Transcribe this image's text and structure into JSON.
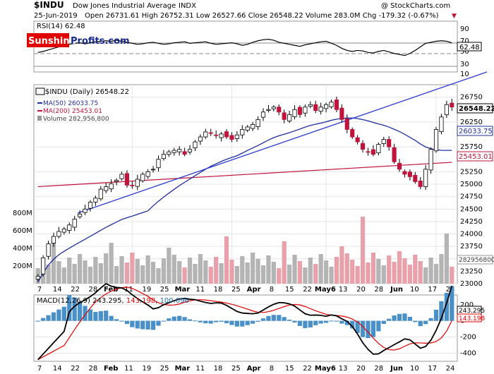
{
  "header": {
    "symbol": "$INDU",
    "name": "Dow Jones Industrial Average",
    "exchange": "INDX",
    "watermark": "@ StockCharts.com",
    "date": "25-Jun-2019",
    "quote": "Open 26731.61  High 26752.31  Low 26527.66  Close 26548.22  Volume 283.0M  Chg -179.32 (-0.67%)",
    "chg_arrow": "▼"
  },
  "logo": {
    "text_red": "Sunshine",
    "text_blue": "Profits.com"
  },
  "rsi": {
    "label": "RSI(14) 62.48",
    "value_badge": "62.48",
    "levels": [
      "90",
      "70",
      "50",
      "30",
      "10"
    ],
    "values": [
      44,
      46,
      49,
      52,
      55,
      57,
      60,
      62,
      63,
      61,
      63,
      65,
      66,
      67,
      66,
      68,
      66,
      64,
      62,
      60,
      61,
      63,
      64,
      62,
      60,
      61,
      63,
      64,
      65,
      62,
      63,
      64,
      65,
      62,
      60,
      61,
      62,
      63,
      61,
      58,
      60,
      64,
      67,
      69,
      70,
      68,
      64,
      62,
      60,
      58,
      56,
      59,
      61,
      63,
      65,
      66,
      62,
      58,
      52,
      48,
      46,
      48,
      47,
      44,
      43,
      46,
      48,
      45,
      42,
      40,
      38,
      42,
      48,
      55,
      62,
      64,
      66,
      67,
      66,
      63
    ]
  },
  "price_panel": {
    "legend_title": "$INDU (Daily) 26548.22",
    "ma50_label": "MA(50) 26033.75",
    "ma200_label": "MA(200) 25453.01",
    "volume_label": "Volume 282,956,800",
    "y_ticks": [
      "26750",
      "26250",
      "25750",
      "25250",
      "25000",
      "24750",
      "24500",
      "24250",
      "24000",
      "23750",
      "23500",
      "23250",
      "23000"
    ],
    "price_badge": "26548.22",
    "ma50_badge": "26033.75",
    "ma200_badge": "25453.01",
    "volume_badge": "282956800",
    "volume_ticks": [
      "800M",
      "600M",
      "400M",
      "200M"
    ]
  },
  "macd": {
    "label": "MACD(12,26,9) 243.295, 143.198, 100.096",
    "label_parts": [
      "MACD(12,26,9) 243.295, ",
      "143.198",
      ", ",
      "100.096"
    ],
    "ticks": [
      "200",
      "0",
      "-200",
      "-400"
    ],
    "badge_macd": "243.295",
    "badge_signal": "143.198"
  },
  "x_axis": {
    "labels": [
      "7",
      "14",
      "22",
      "28",
      "Feb",
      "11",
      "19",
      "25",
      "Mar",
      "11",
      "18",
      "25",
      "Apr",
      "8",
      "15",
      "22",
      "May6",
      "13",
      "20",
      "28",
      "Jun",
      "10",
      "17",
      "24"
    ],
    "bold": [
      "Feb",
      "Mar",
      "Apr",
      "May6",
      "Jun"
    ]
  },
  "colors": {
    "up": "#ffffff",
    "down": "#c0143c",
    "ma50": "#1f2f9f",
    "ma200": "#c0143c",
    "trend": "#2a3ad0",
    "vol_up": "#b4b4b4",
    "vol_down": "#e8a0aa",
    "macd_line": "#000000",
    "signal_line": "#e00000",
    "hist": "#4a90c8"
  },
  "chart_data": {
    "type": "candlestick",
    "title": "$INDU Dow Jones Industrial Average",
    "candles_close": [
      23150,
      23520,
      23800,
      23950,
      24050,
      24100,
      24180,
      24300,
      24400,
      24500,
      24640,
      24720,
      24900,
      24950,
      25010,
      25080,
      25200,
      24980,
      24970,
      25100,
      25200,
      25250,
      25300,
      25500,
      25600,
      25650,
      25680,
      25700,
      25600,
      25700,
      25850,
      25950,
      26050,
      26020,
      25980,
      26010,
      25950,
      25900,
      25990,
      26100,
      26150,
      26200,
      26300,
      26450,
      26500,
      26550,
      26450,
      26300,
      26400,
      26500,
      26400,
      26550,
      26600,
      26480,
      26550,
      26600,
      26650,
      26500,
      26300,
      26100,
      25950,
      25850,
      25700,
      25650,
      25600,
      25800,
      25900,
      25750,
      25450,
      25300,
      25200,
      25150,
      25050,
      24950,
      25300,
      25700,
      26100,
      26350,
      26600,
      26550
    ],
    "ma50_latest": 26033.75,
    "ma200_latest": 25453.01,
    "volume_latest": 282956800,
    "macd": {
      "macd": 243.295,
      "signal": 143.198,
      "histogram": 100.096
    },
    "rsi_latest": 62.48,
    "y_range": [
      23000,
      27000
    ]
  }
}
